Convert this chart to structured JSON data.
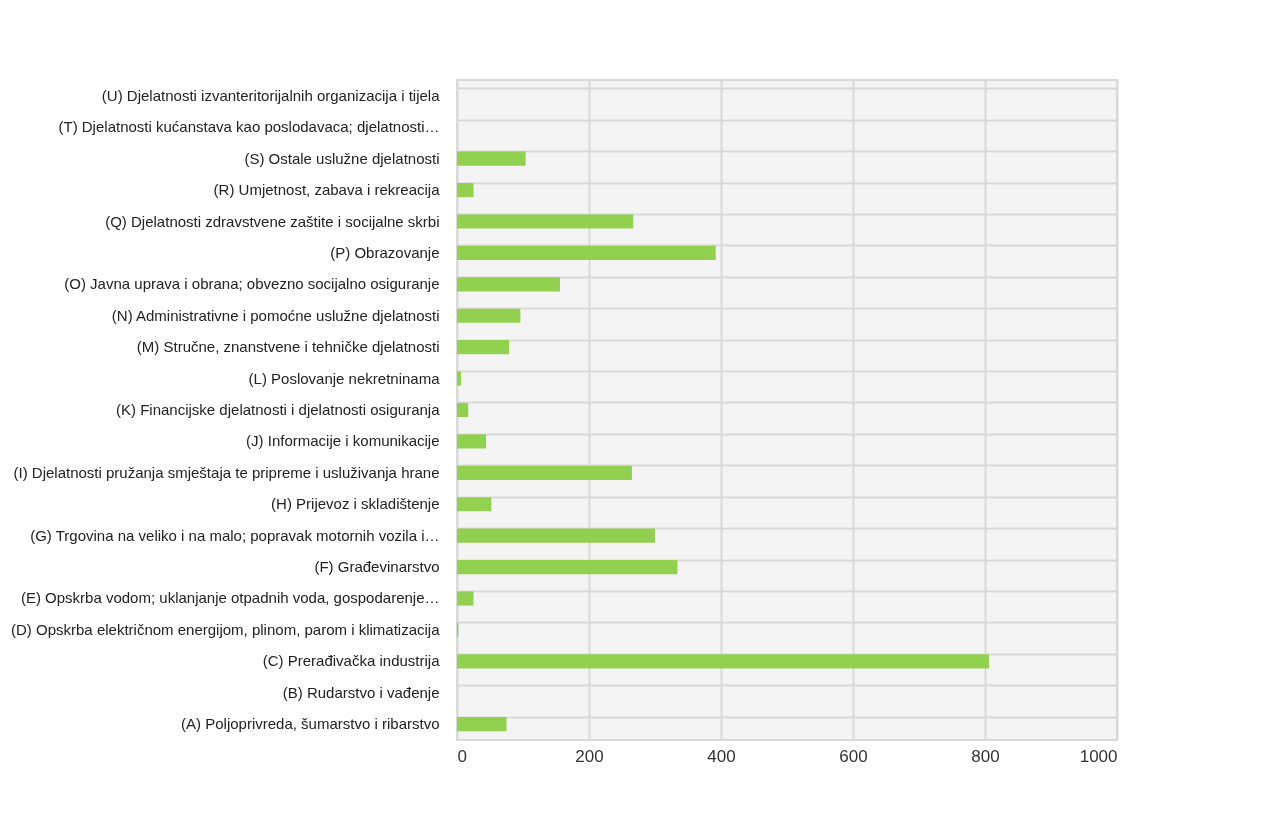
{
  "chart_data": {
    "type": "bar",
    "orientation": "horizontal",
    "categories": [
      "(U) Djelatnosti izvanteritorijalnih organizacija i tijela",
      "(T) Djelatnosti kućanstava kao poslodavaca; djelatnosti…",
      "(S) Ostale uslužne djelatnosti",
      "(R) Umjetnost, zabava i rekreacija",
      "(Q) Djelatnosti zdravstvene zaštite i socijalne skrbi",
      "(P) Obrazovanje",
      "(O) Javna uprava i obrana; obvezno socijalno osiguranje",
      "(N) Administrativne i pomoćne uslužne djelatnosti",
      "(M) Stručne, znanstvene i tehničke djelatnosti",
      "(L) Poslovanje nekretninama",
      "(K) Financijske djelatnosti i djelatnosti osiguranja",
      "(J) Informacije i komunikacije",
      "(I) Djelatnosti pružanja smještaja te pripreme i usluživanja hrane",
      "(H) Prijevoz i skladištenje",
      "(G) Trgovina na veliko i na malo; popravak motornih vozila i…",
      "(F) Građevinarstvo",
      "(E) Opskrba vodom; uklanjanje otpadnih voda, gospodarenje…",
      "(D) Opskrba električnom energijom, plinom, parom i klimatizacija",
      "(C) Prerađivačka industrija",
      "(B) Rudarstvo i vađenje",
      "(A) Poljoprivreda, šumarstvo i ribarstvo"
    ],
    "values": [
      0,
      0,
      104,
      25,
      267,
      392,
      156,
      96,
      79,
      6,
      17,
      44,
      265,
      52,
      300,
      334,
      25,
      2,
      806,
      0,
      75
    ],
    "color": "#92d050",
    "xlim": [
      0,
      1000
    ],
    "xticks": [
      0,
      200,
      400,
      600,
      800,
      1000
    ],
    "grid": true
  }
}
